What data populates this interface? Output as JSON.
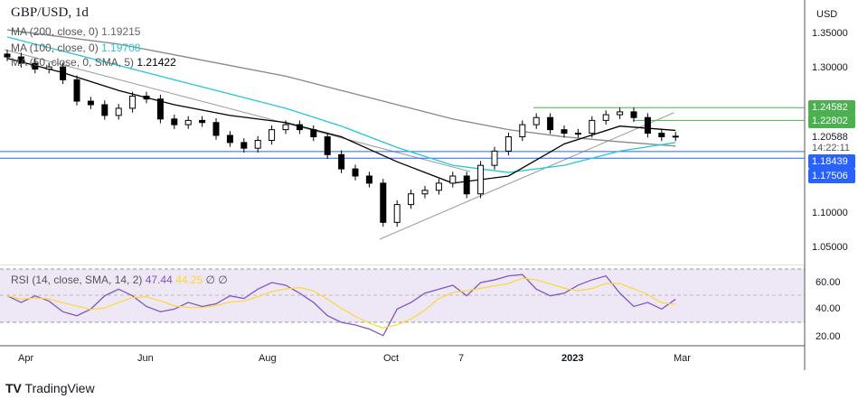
{
  "header": {
    "title": "GBP/USD, 1d",
    "ma200": "MA (200, close, 0)",
    "ma200_val": "1.19215",
    "ma100": "MA (100, close, 0)",
    "ma100_val": "1.19708",
    "ma50": "MA (50, close, 0, SMA, 5)",
    "ma50_val": "1.21422"
  },
  "rsi": {
    "label": "RSI (14, close, SMA, 14, 2)",
    "value": "47.44",
    "ma_value": "44.25",
    "extra1": "∅",
    "extra2": "∅"
  },
  "price_axis": {
    "currency": "USD",
    "ticks": [
      "1.35000",
      "1.30000",
      "1.10000",
      "1.05000"
    ],
    "last_price": "1.20588",
    "countdown": "14:22:11",
    "levels": [
      {
        "value": "1.24582",
        "color": "#4caf50"
      },
      {
        "value": "1.22802",
        "color": "#4caf50"
      },
      {
        "value": "1.18439",
        "color": "#2962ff"
      },
      {
        "value": "1.17506",
        "color": "#2962ff"
      }
    ]
  },
  "rsi_axis": {
    "ticks": [
      "60.00",
      "40.00",
      "20.00"
    ]
  },
  "time_axis": [
    "Apr",
    "Jun",
    "Aug",
    "Oct",
    "7",
    "2023",
    "Mar"
  ],
  "colors": {
    "ma200": "#888888",
    "ma100": "#26c6da",
    "ma50": "#000000",
    "rsi": "#7e57c2",
    "rsi_ma": "#fdd835",
    "band": "#ede7f6"
  },
  "chart_data": {
    "type": "candlestick",
    "closes": [
      1.317,
      1.308,
      1.3,
      1.303,
      1.285,
      1.255,
      1.25,
      1.235,
      1.245,
      1.262,
      1.258,
      1.23,
      1.222,
      1.228,
      1.225,
      1.207,
      1.197,
      1.189,
      1.2,
      1.215,
      1.222,
      1.215,
      1.205,
      1.18,
      1.16,
      1.15,
      1.14,
      1.085,
      1.11,
      1.125,
      1.13,
      1.14,
      1.15,
      1.125,
      1.165,
      1.185,
      1.205,
      1.222,
      1.232,
      1.215,
      1.21,
      1.21,
      1.228,
      1.236,
      1.24,
      1.232,
      1.21,
      1.205,
      1.20588
    ],
    "ma200": [
      1.355,
      1.345,
      1.335,
      1.32,
      1.305,
      1.29,
      1.27,
      1.25,
      1.23,
      1.215,
      1.205,
      1.198,
      1.192
    ],
    "ma100": [
      1.345,
      1.325,
      1.305,
      1.285,
      1.265,
      1.245,
      1.22,
      1.19,
      1.165,
      1.155,
      1.165,
      1.185,
      1.197
    ],
    "ma50": [
      1.315,
      1.295,
      1.27,
      1.25,
      1.235,
      1.225,
      1.205,
      1.17,
      1.14,
      1.15,
      1.195,
      1.22,
      1.214
    ],
    "rsi": [
      50,
      45,
      50,
      46,
      38,
      35,
      40,
      50,
      55,
      50,
      42,
      38,
      40,
      45,
      42,
      44,
      50,
      48,
      55,
      60,
      58,
      52,
      45,
      35,
      30,
      28,
      25,
      20,
      40,
      45,
      52,
      55,
      58,
      50,
      60,
      62,
      65,
      66,
      55,
      50,
      52,
      58,
      62,
      65,
      52,
      42,
      45,
      40,
      47.44
    ],
    "ylim": [
      1.03,
      1.37
    ]
  },
  "footer": {
    "brand": "TradingView"
  }
}
